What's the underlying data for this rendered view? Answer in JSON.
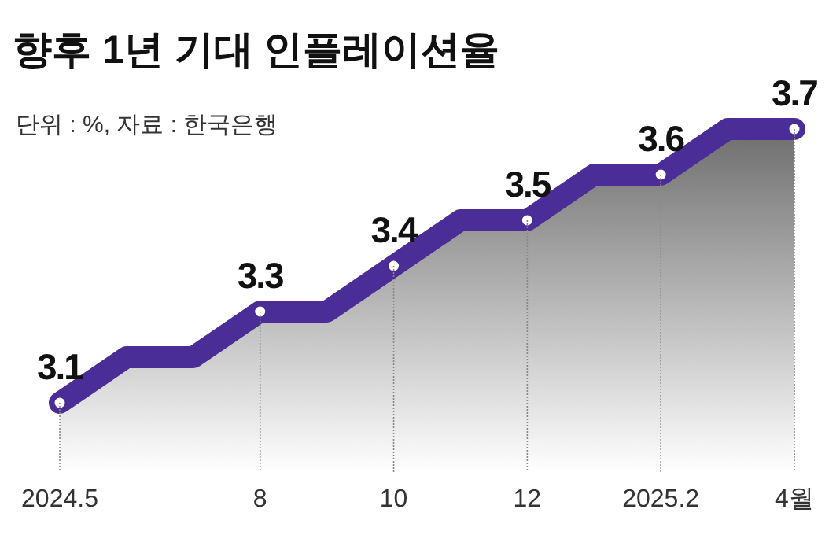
{
  "chart_data": {
    "type": "area",
    "title": "향후 1년 기대 인플레이션율",
    "subtitle": "단위 : %, 자료 : 한국은행",
    "categories": [
      "2024.5",
      null,
      null,
      "8",
      null,
      "10",
      null,
      "12",
      null,
      "2025.2",
      null,
      "4월"
    ],
    "series": [
      {
        "color": "#4a2d96",
        "values": [
          3.1,
          3.2,
          3.2,
          3.3,
          3.3,
          3.4,
          3.5,
          3.5,
          3.6,
          3.6,
          3.7,
          3.7
        ],
        "value_labels": [
          "3.1",
          null,
          null,
          "3.3",
          null,
          "3.4",
          null,
          "3.5",
          null,
          "3.6",
          null,
          "3.7"
        ]
      }
    ],
    "marker": "circle",
    "grid": false
  }
}
